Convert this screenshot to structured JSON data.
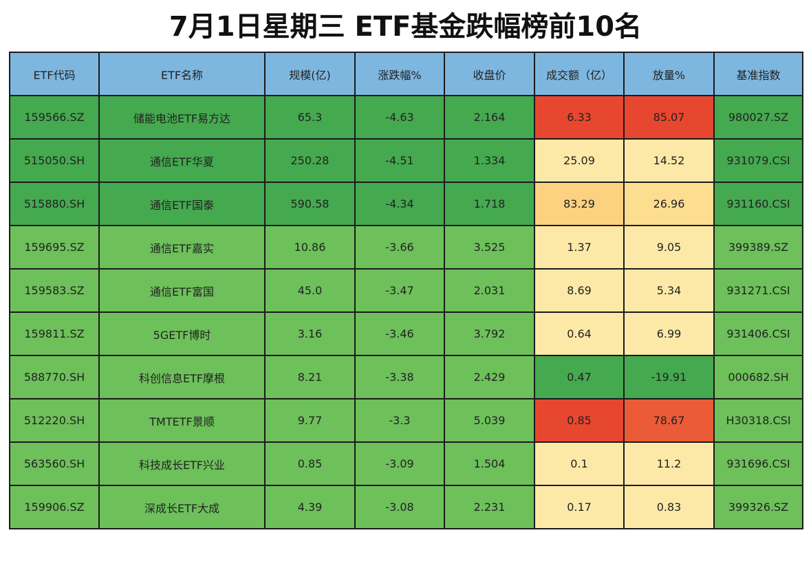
{
  "header": {
    "title": "7月1日星期三  ETF基金跌幅榜前10名"
  },
  "table": {
    "columns": [
      "ETF代码",
      "ETF名称",
      "规模(亿)",
      "涨跌幅%",
      "收盘价",
      "成交额（亿）",
      "放量%",
      "基准指数"
    ],
    "rows": [
      [
        "159566.SZ",
        "储能电池ETF易方达",
        "65.3",
        "-4.63",
        "2.164",
        "6.33",
        "85.07",
        "980027.SZ"
      ],
      [
        "515050.SH",
        "通信ETF华夏",
        "250.28",
        "-4.51",
        "1.334",
        "25.09",
        "14.52",
        "931079.CSI"
      ],
      [
        "515880.SH",
        "通信ETF国泰",
        "590.58",
        "-4.34",
        "1.718",
        "83.29",
        "26.96",
        "931160.CSI"
      ],
      [
        "159695.SZ",
        "通信ETF嘉实",
        "10.86",
        "-3.66",
        "3.525",
        "1.37",
        "9.05",
        "399389.SZ"
      ],
      [
        "159583.SZ",
        "通信ETF富国",
        "45.0",
        "-3.47",
        "2.031",
        "8.69",
        "5.34",
        "931271.CSI"
      ],
      [
        "159811.SZ",
        "5GETF博时",
        "3.16",
        "-3.46",
        "3.792",
        "0.64",
        "6.99",
        "931406.CSI"
      ],
      [
        "588770.SH",
        "科创信息ETF摩根",
        "8.21",
        "-3.38",
        "2.429",
        "0.47",
        "-19.91",
        "000682.SH"
      ],
      [
        "512220.SH",
        "TMTETF景顺",
        "9.77",
        "-3.3",
        "5.039",
        "0.85",
        "78.67",
        "H30318.CSI"
      ],
      [
        "563560.SH",
        "科技成长ETF兴业",
        "0.85",
        "-3.09",
        "1.504",
        "0.1",
        "11.2",
        "931696.CSI"
      ],
      [
        "159906.SZ",
        "深成长ETF大成",
        "4.39",
        "-3.08",
        "2.231",
        "0.17",
        "0.83",
        "399326.SZ"
      ]
    ]
  }
}
